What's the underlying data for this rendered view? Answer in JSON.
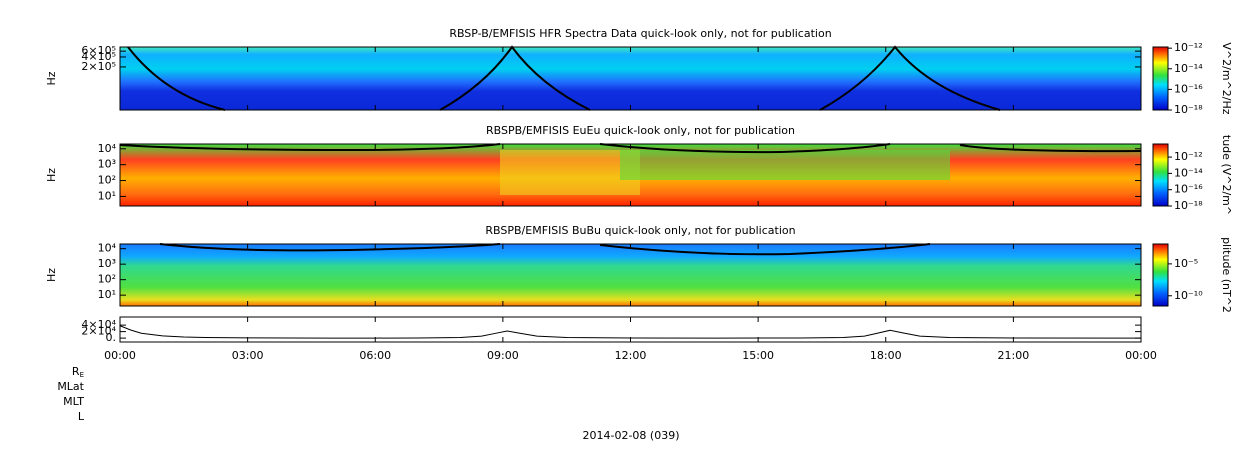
{
  "chart_data": [
    {
      "type": "spectrogram",
      "title": "RBSP-B/EMFISIS  HFR Spectra Data quick-look only, not for publication",
      "ylabel": "Hz",
      "ylog": true,
      "ylim": [
        10000,
        800000
      ],
      "yticks": [
        {
          "value": 200000,
          "label": "2×10⁵"
        },
        {
          "value": 400000,
          "label": "4×10⁵"
        },
        {
          "value": 600000,
          "label": "6×10⁵"
        }
      ],
      "colorbar": {
        "label": "V^2/m^2/Hz",
        "log": true,
        "lim": [
          1e-18,
          1.3e-12
        ],
        "ticks": [
          {
            "value": 1e-12,
            "label": "10⁻¹²"
          },
          {
            "value": 1e-14,
            "label": "10⁻¹⁴"
          },
          {
            "value": 1e-16,
            "label": "10⁻¹⁶"
          },
          {
            "value": 1e-18,
            "label": "10⁻¹⁸"
          }
        ]
      }
    },
    {
      "type": "spectrogram",
      "title": "RBSPB/EMFISIS  EuEu quick-look only, not for publication",
      "ylabel": "Hz",
      "ylog": true,
      "ylim": [
        2.5,
        20000
      ],
      "yticks": [
        {
          "value": 10,
          "label": "10¹"
        },
        {
          "value": 100,
          "label": "10²"
        },
        {
          "value": 1000,
          "label": "10³"
        },
        {
          "value": 10000,
          "label": "10⁴"
        }
      ],
      "colorbar": {
        "label": "tude (V^2/m^",
        "log": true,
        "lim": [
          1e-18,
          4e-11
        ],
        "ticks": [
          {
            "value": 1e-12,
            "label": "10⁻¹²"
          },
          {
            "value": 1e-14,
            "label": "10⁻¹⁴"
          },
          {
            "value": 1e-16,
            "label": "10⁻¹⁶"
          },
          {
            "value": 1e-18,
            "label": "10⁻¹⁸"
          }
        ]
      }
    },
    {
      "type": "spectrogram",
      "title": "RBSPB/EMFISIS  BuBu quick-look only, not for publication",
      "ylabel": "Hz",
      "ylog": true,
      "ylim": [
        2,
        20000
      ],
      "yticks": [
        {
          "value": 10,
          "label": "10¹"
        },
        {
          "value": 100,
          "label": "10²"
        },
        {
          "value": 1000,
          "label": "10³"
        },
        {
          "value": 10000,
          "label": "10⁴"
        }
      ],
      "colorbar": {
        "label": "plitude (nT^2",
        "log": true,
        "lim": [
          2.5e-12,
          0.013
        ],
        "ticks": [
          {
            "value": 1e-05,
            "label": "10⁻⁵"
          },
          {
            "value": 1e-10,
            "label": "10⁻¹⁰"
          }
        ]
      }
    },
    {
      "type": "line",
      "color": "#000000",
      "ylim": [
        -12000,
        65000
      ],
      "yticks": [
        {
          "value": 0,
          "label": "0."
        },
        {
          "value": 20000,
          "label": "2×10⁴"
        },
        {
          "value": 40000,
          "label": "4×10⁴"
        }
      ],
      "xlim": [
        0,
        24
      ],
      "xticks": [
        {
          "value": 0,
          "label": "00:00"
        },
        {
          "value": 3,
          "label": "03:00"
        },
        {
          "value": 6,
          "label": "06:00"
        },
        {
          "value": 9,
          "label": "09:00"
        },
        {
          "value": 12,
          "label": "12:00"
        },
        {
          "value": 15,
          "label": "15:00"
        },
        {
          "value": 18,
          "label": "18:00"
        },
        {
          "value": 21,
          "label": "21:00"
        },
        {
          "value": 24,
          "label": "00:00"
        }
      ],
      "x": [
        0,
        0.25,
        0.5,
        1,
        1.5,
        2,
        3,
        4,
        5,
        6,
        7,
        8,
        8.5,
        8.8,
        9.1,
        9.4,
        9.8,
        10.5,
        12,
        14,
        16,
        17,
        17.5,
        17.8,
        18.1,
        18.4,
        18.8,
        19.5,
        21,
        24
      ],
      "values": [
        38000,
        25000,
        15000,
        7000,
        3500,
        2000,
        800,
        300,
        100,
        100,
        300,
        2000,
        6000,
        14000,
        22000,
        15000,
        6000,
        2000,
        300,
        100,
        300,
        2000,
        6000,
        15000,
        24000,
        16000,
        6000,
        2000,
        300,
        100
      ]
    }
  ],
  "footer": {
    "row_labels": [
      {
        "text": "R",
        "subscript": "E"
      },
      {
        "text": "MLat"
      },
      {
        "text": "MLT"
      },
      {
        "text": "L"
      }
    ],
    "date": "2014-02-08 (039)"
  }
}
